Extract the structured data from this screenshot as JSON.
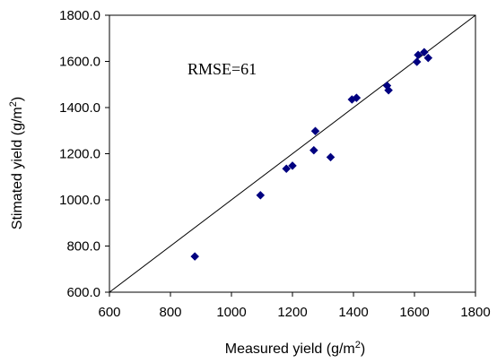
{
  "chart_data": {
    "type": "scatter",
    "xlabel": {
      "prefix": "Measured yield (g/m",
      "sup": "2",
      "suffix": ")"
    },
    "ylabel": {
      "prefix": "Stimated yield (g/m",
      "sup": "2",
      "suffix": ")"
    },
    "xlim": [
      600,
      1800
    ],
    "ylim": [
      600,
      1800
    ],
    "x_ticks": [
      600,
      800,
      1000,
      1200,
      1400,
      1600,
      1800
    ],
    "y_ticks": [
      600,
      800,
      1000,
      1200,
      1400,
      1600,
      1800
    ],
    "x_tick_labels": [
      "600",
      "800",
      "1000",
      "1200",
      "1400",
      "1600",
      "1800"
    ],
    "y_tick_labels": [
      "600.0",
      "800.0",
      "1000.0",
      "1200.0",
      "1400.0",
      "1600.0",
      "1800.0"
    ],
    "annotation": "RMSE=61",
    "reference_line": {
      "from": [
        600,
        600
      ],
      "to": [
        1800,
        1800
      ]
    },
    "grid": false,
    "marker_color": "#000080",
    "series": [
      {
        "marker": "diamond",
        "points": [
          [
            880,
            755
          ],
          [
            1095,
            1020
          ],
          [
            1180,
            1135
          ],
          [
            1200,
            1148
          ],
          [
            1270,
            1215
          ],
          [
            1275,
            1298
          ],
          [
            1325,
            1185
          ],
          [
            1395,
            1435
          ],
          [
            1410,
            1442
          ],
          [
            1510,
            1495
          ],
          [
            1515,
            1475
          ],
          [
            1608,
            1598
          ],
          [
            1612,
            1628
          ],
          [
            1632,
            1640
          ],
          [
            1645,
            1615
          ]
        ]
      }
    ]
  }
}
